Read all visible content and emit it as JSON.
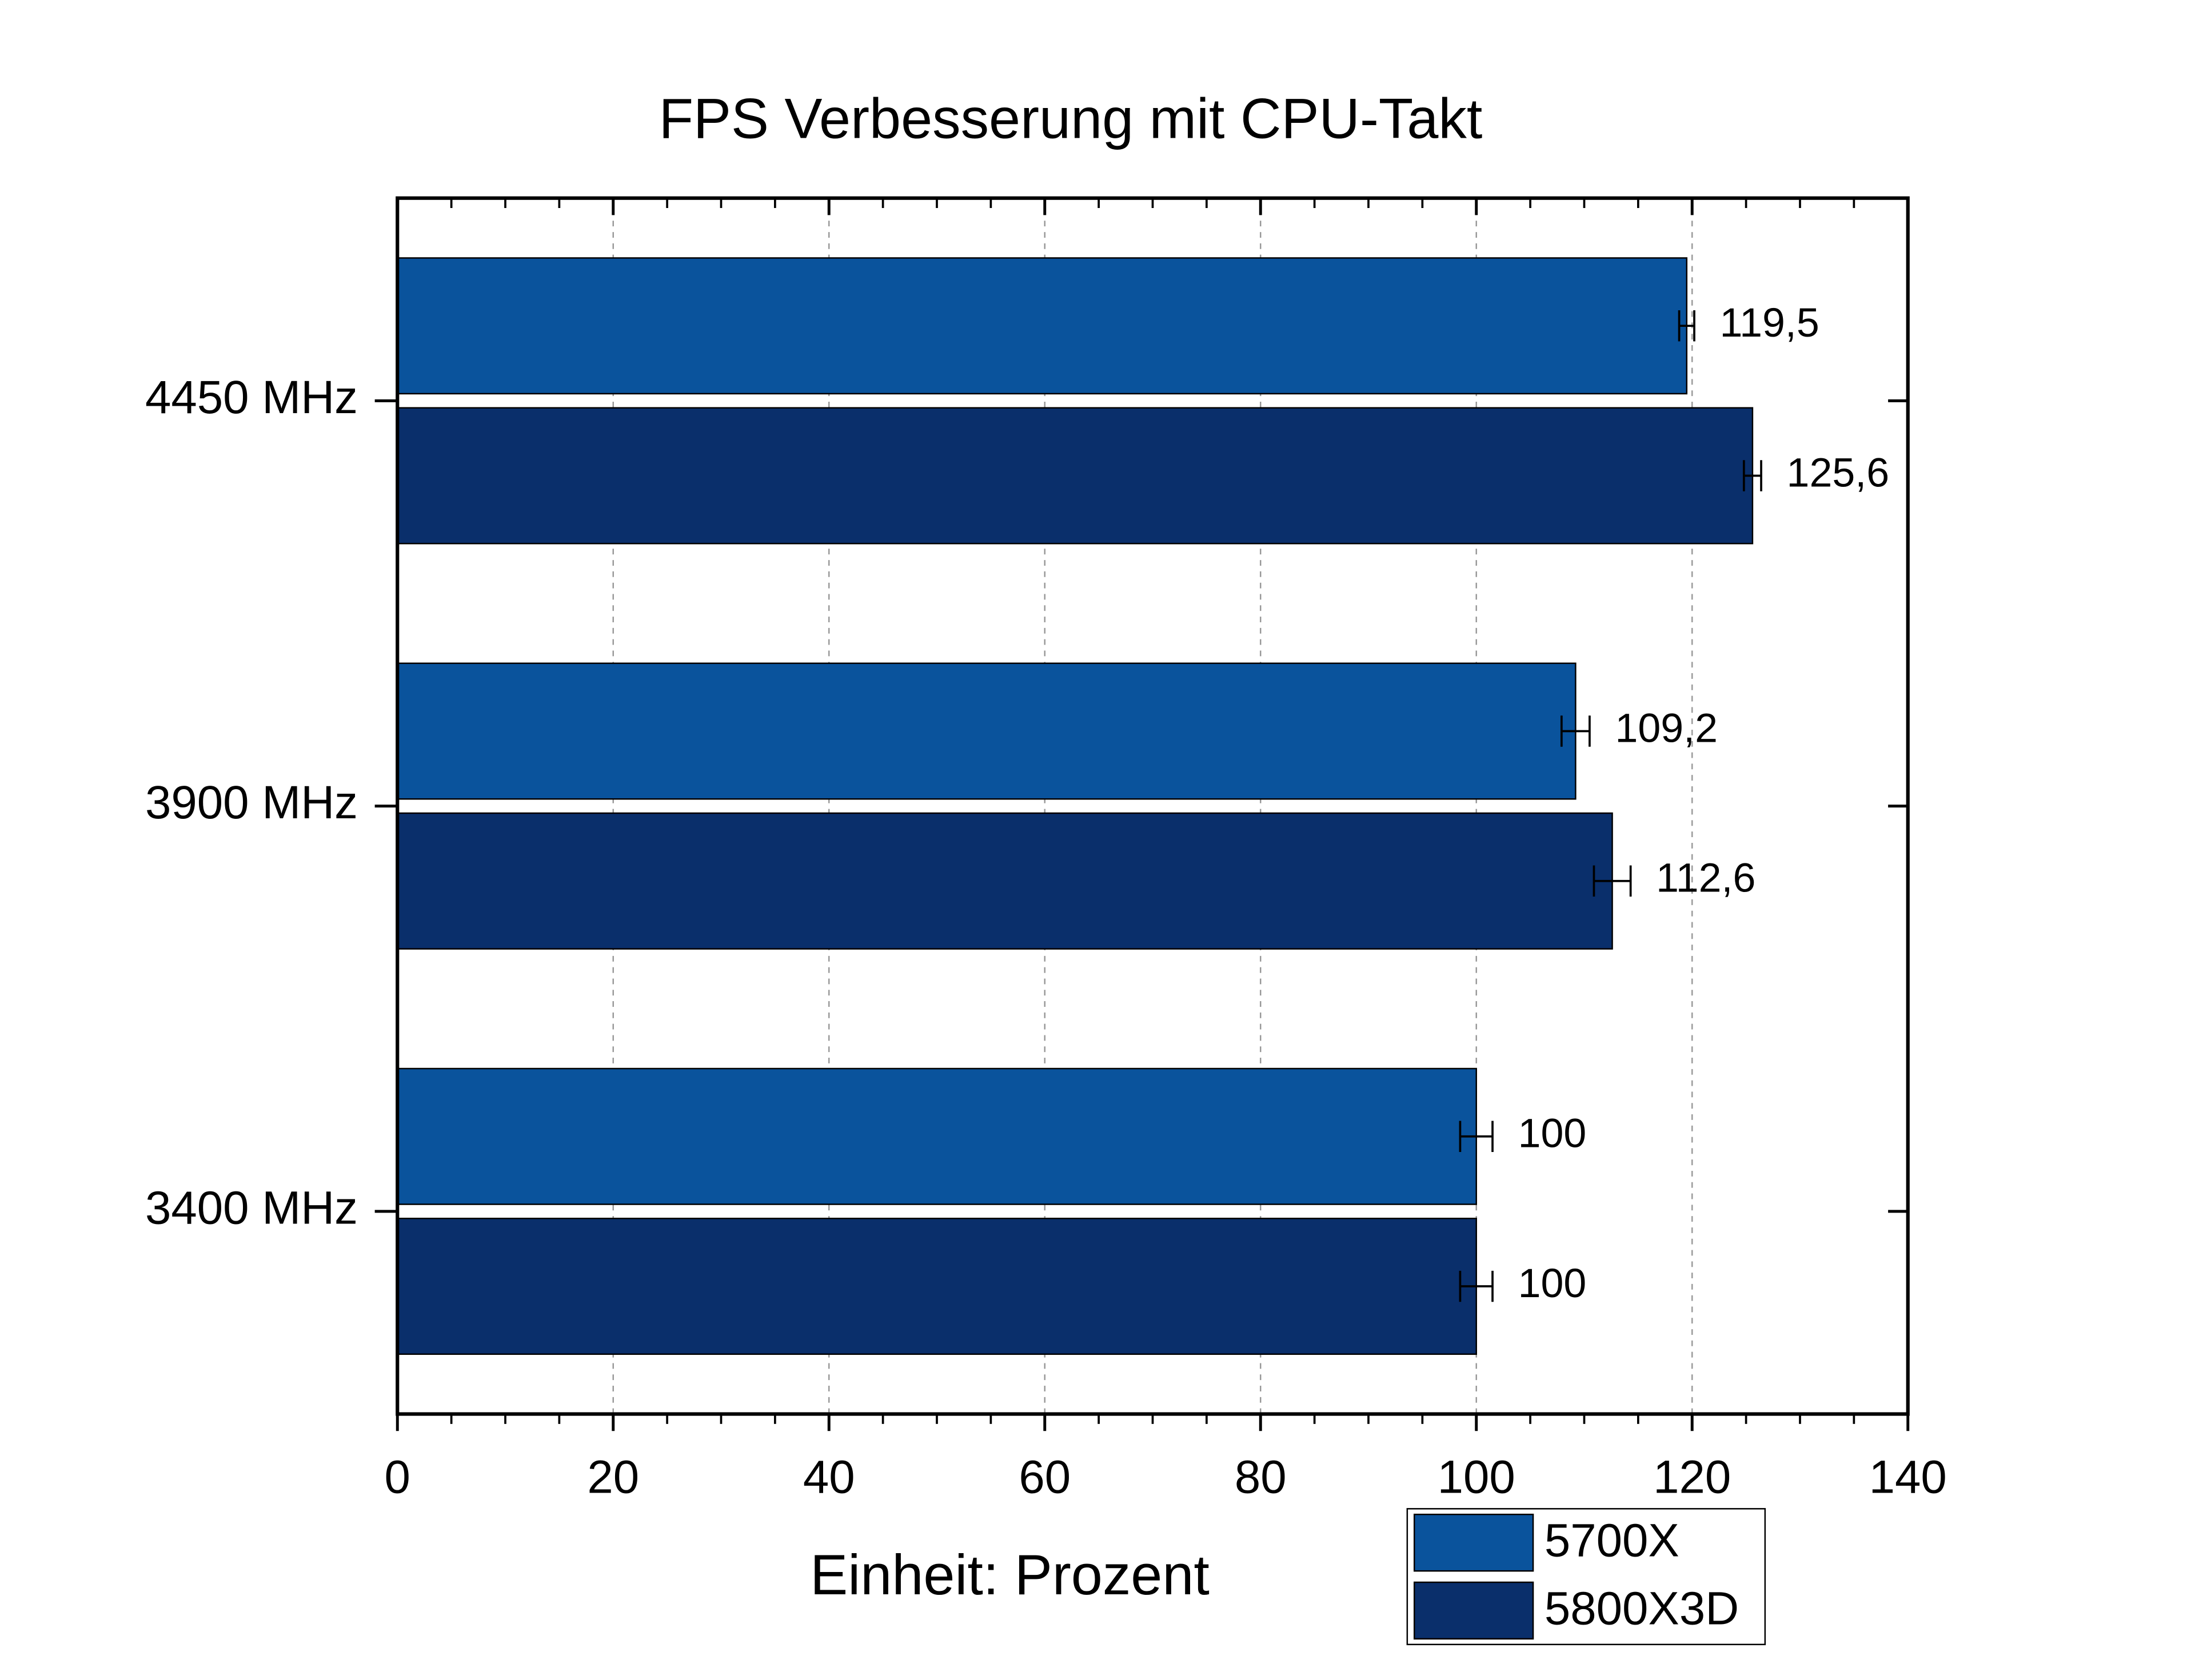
{
  "chart_data": {
    "type": "bar",
    "orientation": "horizontal",
    "title": "FPS Verbesserung mit CPU-Takt",
    "x_label": "Einheit: Prozent",
    "categories": [
      "3400 MHz",
      "3900 MHz",
      "4450 MHz"
    ],
    "series": [
      {
        "name": "5700X",
        "color": "#0a539c",
        "values": [
          100,
          109.2,
          119.5
        ],
        "value_labels": [
          "100",
          "109,2",
          "119,5"
        ],
        "errors": [
          1.5,
          1.3,
          0.7
        ]
      },
      {
        "name": "5800X3D",
        "color": "#0a2f6b",
        "values": [
          100,
          112.6,
          125.6
        ],
        "value_labels": [
          "100",
          "112,6",
          "125,6"
        ],
        "errors": [
          1.5,
          1.7,
          0.8
        ]
      }
    ],
    "xlim": [
      0,
      140
    ],
    "xticks": [
      0,
      20,
      40,
      60,
      80,
      100,
      120,
      140
    ],
    "grid": true,
    "legend": "bottom right"
  }
}
